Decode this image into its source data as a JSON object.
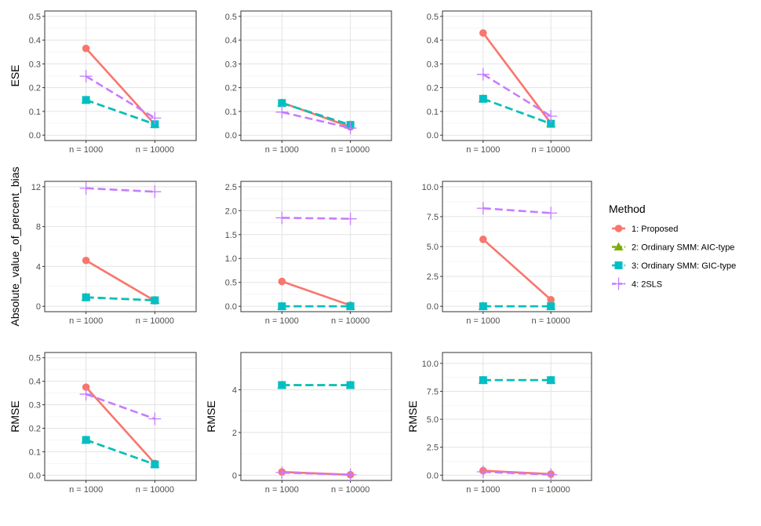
{
  "chart_data": {
    "type": "line",
    "x_categories": [
      "n = 1000",
      "n = 10000"
    ],
    "legend": {
      "title": "Method",
      "position": "right",
      "entries": [
        {
          "label": "1: Proposed",
          "color": "#F8766D",
          "marker": "circle",
          "linetype": "solid"
        },
        {
          "label": "2: Ordinary SMM: AIC-type",
          "color": "#7CAE00",
          "marker": "triangle",
          "linetype": "dashed"
        },
        {
          "label": "3: Ordinary SMM: GIC-type",
          "color": "#00BFC4",
          "marker": "square",
          "linetype": "dashed"
        },
        {
          "label": "4: 2SLS",
          "color": "#C77CFF",
          "marker": "plus",
          "linetype": "dashed"
        }
      ]
    },
    "panels": [
      {
        "id": "r1c1",
        "ylabel": "ESE",
        "ylim": [
          0,
          0.5
        ],
        "yticks": [
          "0.0",
          "0.1",
          "0.2",
          "0.3",
          "0.4",
          "0.5"
        ],
        "series": [
          [
            0.365,
            0.045
          ],
          [
            0.148,
            0.046
          ],
          [
            0.148,
            0.046
          ],
          [
            0.248,
            0.072
          ]
        ]
      },
      {
        "id": "r1c2",
        "ylabel": "",
        "ylim": [
          0,
          0.5
        ],
        "yticks": [
          "0.0",
          "0.1",
          "0.2",
          "0.3",
          "0.4",
          "0.5"
        ],
        "series": [
          [
            0.137,
            0.035
          ],
          [
            0.135,
            0.043
          ],
          [
            0.135,
            0.043
          ],
          [
            0.097,
            0.03
          ]
        ]
      },
      {
        "id": "r1c3",
        "ylabel": "",
        "ylim": [
          0,
          0.5
        ],
        "yticks": [
          "0.0",
          "0.1",
          "0.2",
          "0.3",
          "0.4",
          "0.5"
        ],
        "series": [
          [
            0.43,
            0.05
          ],
          [
            0.153,
            0.048
          ],
          [
            0.153,
            0.048
          ],
          [
            0.256,
            0.08
          ]
        ]
      },
      {
        "id": "r2c1",
        "ylabel": "Absolute_value_of_percent_bias",
        "ylim": [
          0,
          12
        ],
        "yticks": [
          "0",
          "4",
          "8",
          "12"
        ],
        "series": [
          [
            4.6,
            0.55
          ],
          [
            0.9,
            0.6
          ],
          [
            0.9,
            0.6
          ],
          [
            11.85,
            11.5
          ]
        ]
      },
      {
        "id": "r2c2",
        "ylabel": "",
        "ylim": [
          0,
          2.5
        ],
        "yticks": [
          "0.0",
          "0.5",
          "1.0",
          "1.5",
          "2.0",
          "2.5"
        ],
        "series": [
          [
            0.52,
            0.02
          ],
          [
            0,
            0
          ],
          [
            0,
            0
          ],
          [
            1.85,
            1.83
          ]
        ]
      },
      {
        "id": "r2c3",
        "ylabel": "",
        "ylim": [
          0,
          10
        ],
        "yticks": [
          "0.0",
          "2.5",
          "5.0",
          "7.5",
          "10.0"
        ],
        "series": [
          [
            5.6,
            0.55
          ],
          [
            0,
            0
          ],
          [
            0,
            0
          ],
          [
            8.2,
            7.8
          ]
        ]
      },
      {
        "id": "r3c1",
        "ylabel": "RMSE",
        "ylim": [
          0,
          0.5
        ],
        "yticks": [
          "0.0",
          "0.1",
          "0.2",
          "0.3",
          "0.4",
          "0.5"
        ],
        "series": [
          [
            0.375,
            0.05
          ],
          [
            0.15,
            0.046
          ],
          [
            0.15,
            0.046
          ],
          [
            0.345,
            0.24
          ]
        ]
      },
      {
        "id": "r3c2",
        "ylabel": "RMSE",
        "ylim": [
          0,
          5.5
        ],
        "yticks": [
          "0",
          "2",
          "4"
        ],
        "series": [
          [
            0.15,
            0.02
          ],
          [
            4.22,
            4.22
          ],
          [
            4.22,
            4.22
          ],
          [
            0.12,
            0.02
          ]
        ]
      },
      {
        "id": "r3c3",
        "ylabel": "RMSE",
        "ylim": [
          0,
          10.5
        ],
        "yticks": [
          "0.0",
          "2.5",
          "5.0",
          "7.5",
          "10.0"
        ],
        "series": [
          [
            0.4,
            0.1
          ],
          [
            8.5,
            8.5
          ],
          [
            8.5,
            8.5
          ],
          [
            0.3,
            0.05
          ]
        ]
      }
    ]
  }
}
